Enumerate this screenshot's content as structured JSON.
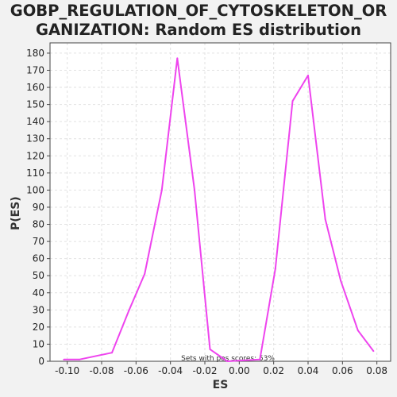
{
  "chart_data": {
    "type": "line",
    "title": "GOBP_REGULATION_OF_CYTOSKELETON_OR\nGANIZATION: Random ES distribution",
    "xlabel": "ES",
    "ylabel": "P(ES)",
    "xlim": [
      -0.11,
      0.088
    ],
    "ylim": [
      0,
      186
    ],
    "xticks": [
      -0.1,
      -0.08,
      -0.06,
      -0.04,
      -0.02,
      0.0,
      0.02,
      0.04,
      0.06,
      0.08
    ],
    "xtick_labels": [
      "-0.10",
      "-0.08",
      "-0.06",
      "-0.04",
      "-0.02",
      "0.00",
      "0.02",
      "0.04",
      "0.06",
      "0.08"
    ],
    "yticks": [
      0,
      10,
      20,
      30,
      40,
      50,
      60,
      70,
      80,
      90,
      100,
      110,
      120,
      130,
      140,
      150,
      160,
      170,
      180
    ],
    "grid": true,
    "series": [
      {
        "color": "#ee44ee",
        "x": [
          -0.102,
          -0.093,
          -0.074,
          -0.064,
          -0.055,
          -0.045,
          -0.036,
          -0.026,
          -0.017,
          -0.007,
          0.012,
          0.021,
          0.031,
          0.04,
          0.05,
          0.059,
          0.069,
          0.078
        ],
        "y": [
          1,
          1,
          5,
          30,
          51,
          100,
          177,
          100,
          7,
          0,
          1,
          54,
          152,
          167,
          83,
          47,
          18,
          6
        ]
      }
    ],
    "annotation": "Sets with pos scores: 53%"
  }
}
